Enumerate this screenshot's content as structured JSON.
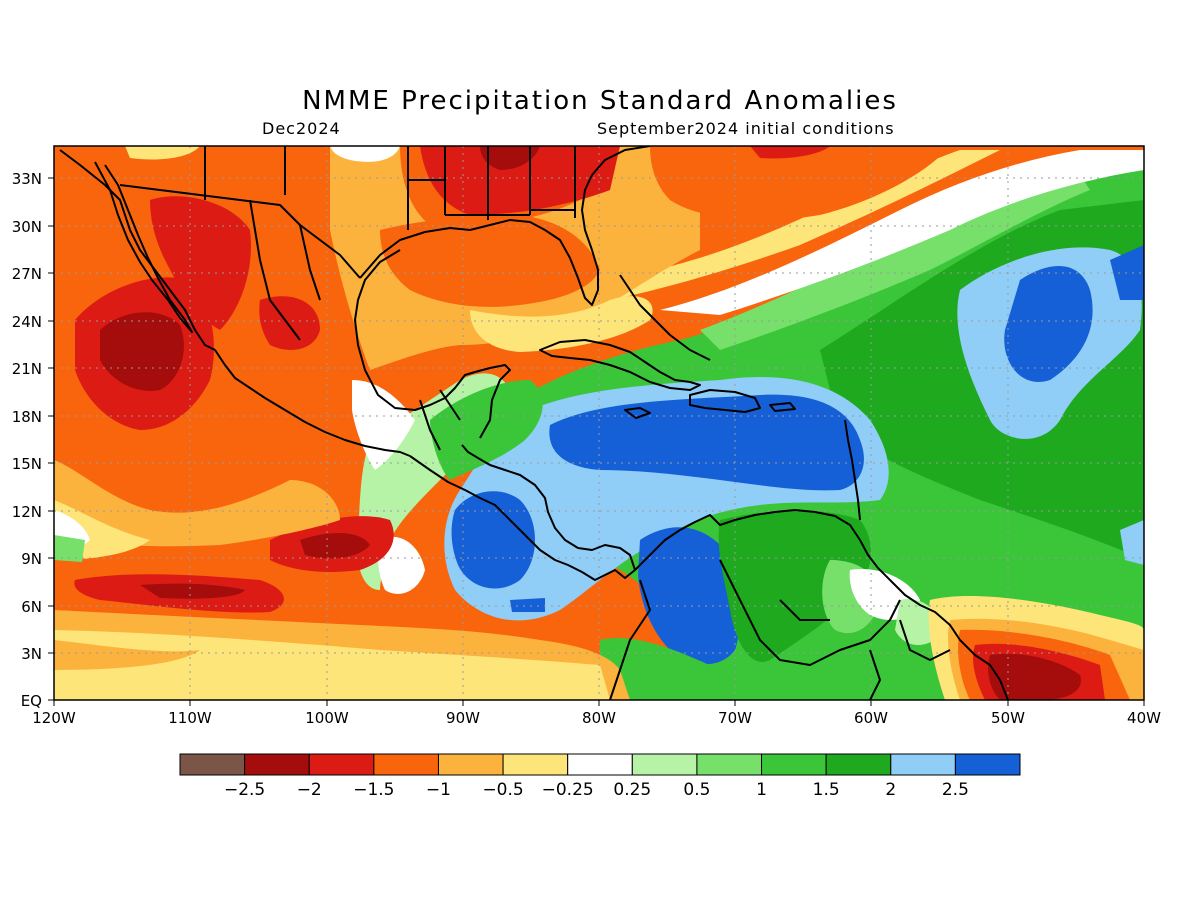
{
  "map": {
    "title": "NMME Precipitation Standard Anomalies",
    "target_month": "Dec2024",
    "initial_conditions": "September2024 initial conditions",
    "lon_range": [
      -120,
      -40
    ],
    "lat_range": [
      0,
      35
    ],
    "lon_ticks": [
      "120W",
      "110W",
      "100W",
      "90W",
      "80W",
      "70W",
      "60W",
      "50W",
      "40W"
    ],
    "lat_ticks": [
      "EQ",
      "3N",
      "6N",
      "9N",
      "12N",
      "15N",
      "18N",
      "21N",
      "24N",
      "27N",
      "30N",
      "33N"
    ],
    "gridlines": true,
    "region": "Mexico, Central America, Caribbean and northern South America"
  },
  "colorbar": {
    "colors": [
      "#7a5548",
      "#a50d0d",
      "#dc1c14",
      "#f8650d",
      "#fbb33e",
      "#fee57a",
      "#ffffff",
      "#b7f3a7",
      "#76e06b",
      "#3bc63a",
      "#1fa91f",
      "#90cdf7",
      "#1560d6"
    ],
    "tick_labels": [
      "-2.5",
      "-2",
      "-1.5",
      "-1",
      "-0.5",
      "-0.25",
      "0.25",
      "0.5",
      "1",
      "1.5",
      "2",
      "2.5"
    ]
  },
  "anomaly_regions": [
    {
      "area": "Mexico and eastern Pacific",
      "category": "below normal",
      "range": "-0.5 to -2.5"
    },
    {
      "area": "Gulf of Mexico and southeastern U.S.",
      "category": "below normal",
      "range": "-0.5 to -2"
    },
    {
      "area": "Caribbean Sea",
      "category": "above normal",
      "range": "1 to >2.5"
    },
    {
      "area": "Central America (Pacific side)",
      "category": "above normal",
      "range": "2 to >2.5"
    },
    {
      "area": "Colombia",
      "category": "above normal",
      "range": "1.5 to >2.5"
    },
    {
      "area": "Central tropical Atlantic",
      "category": "above normal",
      "range": "1 to >2.5"
    },
    {
      "area": "Northern Brazil coast",
      "category": "below normal",
      "range": "-1 to -2.5"
    }
  ]
}
